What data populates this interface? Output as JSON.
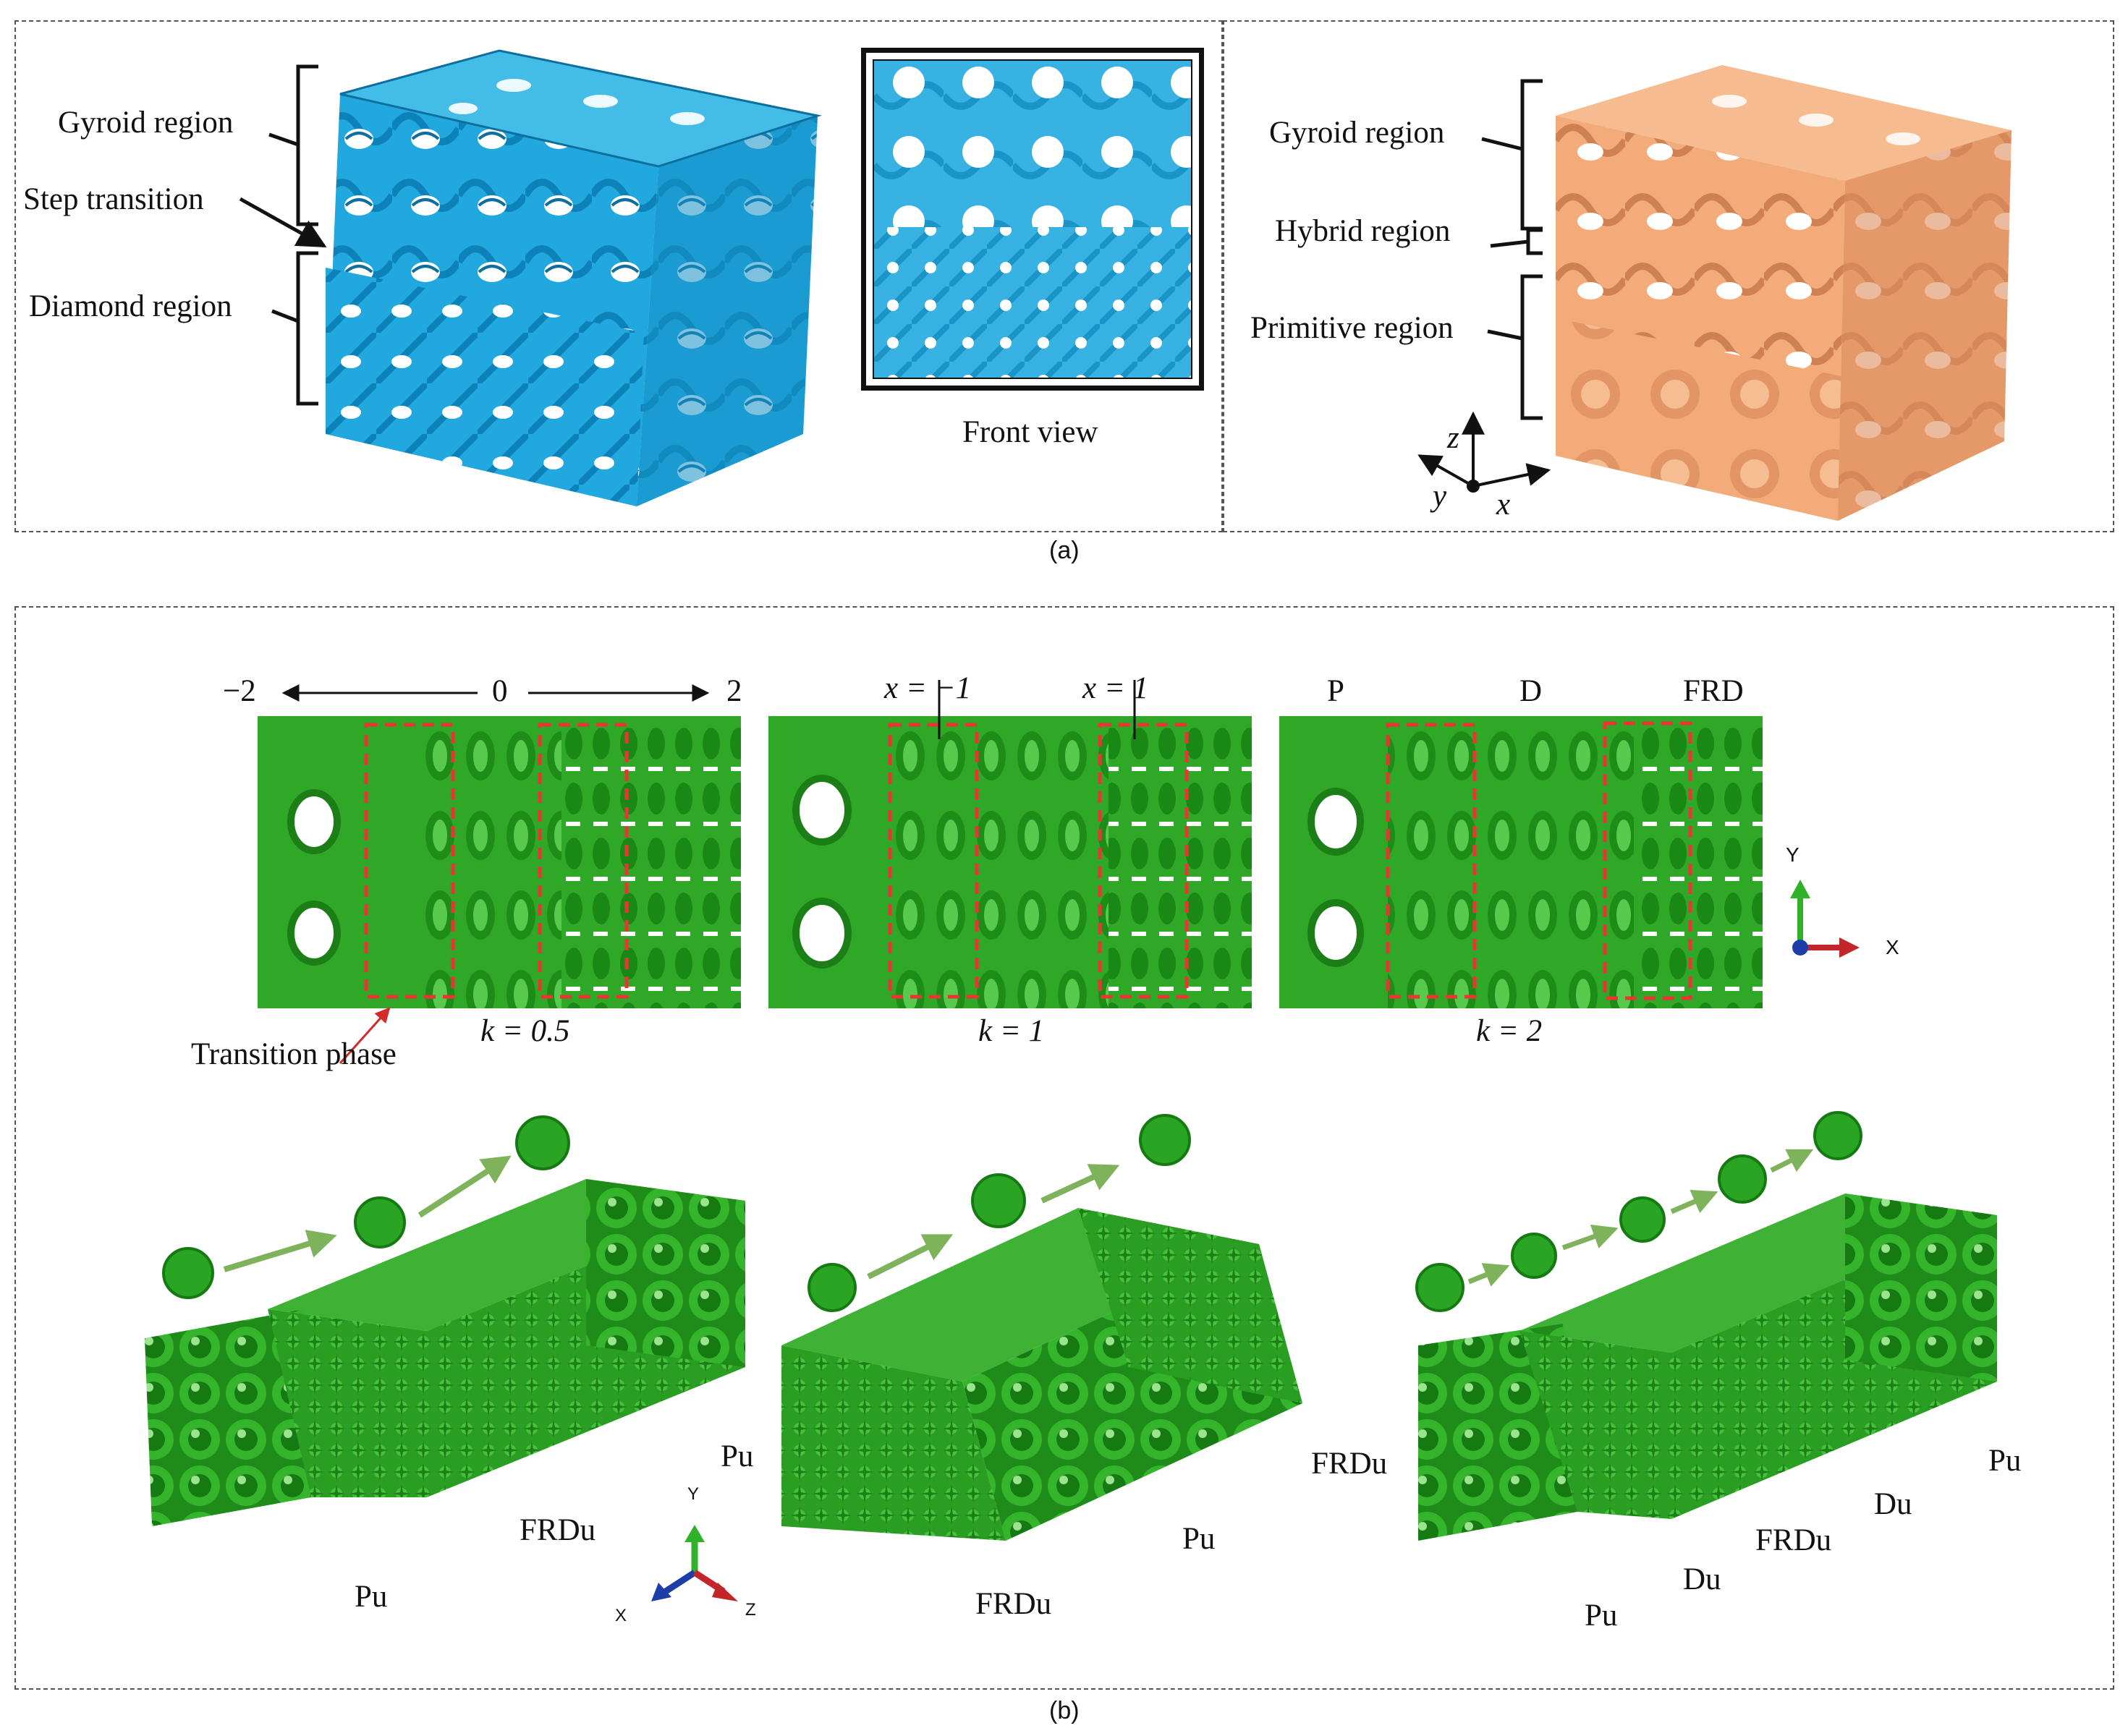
{
  "panel_a": {
    "caption": "(a)",
    "left": {
      "labels": [
        "Gyroid region",
        "Step transition",
        "Diamond region"
      ],
      "front_view_label": "Front view",
      "color": "#1aa9de"
    },
    "right": {
      "labels": [
        "Gyroid region",
        "Hybrid region",
        "Primitive region"
      ],
      "axes": {
        "z": "z",
        "y": "y",
        "x": "x"
      },
      "color": "#f0a977"
    }
  },
  "panel_b": {
    "caption": "(b)",
    "color": "#23a11d",
    "scale": {
      "left": "−2",
      "mid": "0",
      "right": "2"
    },
    "strip1": {
      "k_label": "k = 0.5",
      "transition_label": "Transition phase"
    },
    "strip2": {
      "k_label": "k = 1",
      "x_neg": "x = −1",
      "x_pos": "x = 1"
    },
    "strip3": {
      "k_label": "k = 2",
      "p": "P",
      "d": "D",
      "frd": "FRD"
    },
    "xy_axes": {
      "y": "Y",
      "x": "X"
    },
    "blocks": {
      "b1": {
        "label_pu_top": "Pu",
        "label_frdu": "FRDu",
        "label_pu_bottom": "Pu"
      },
      "b2": {
        "label_frdu_top": "FRDu",
        "label_pu": "Pu",
        "label_frdu_bottom": "FRDu"
      },
      "b3": {
        "label_pu_top": "Pu",
        "label_du_top": "Du",
        "label_frdu": "FRDu",
        "label_du_bottom": "Du",
        "label_pu_bottom": "Pu"
      }
    },
    "xyz_axes": {
      "y": "Y",
      "x": "X",
      "z": "Z"
    }
  }
}
